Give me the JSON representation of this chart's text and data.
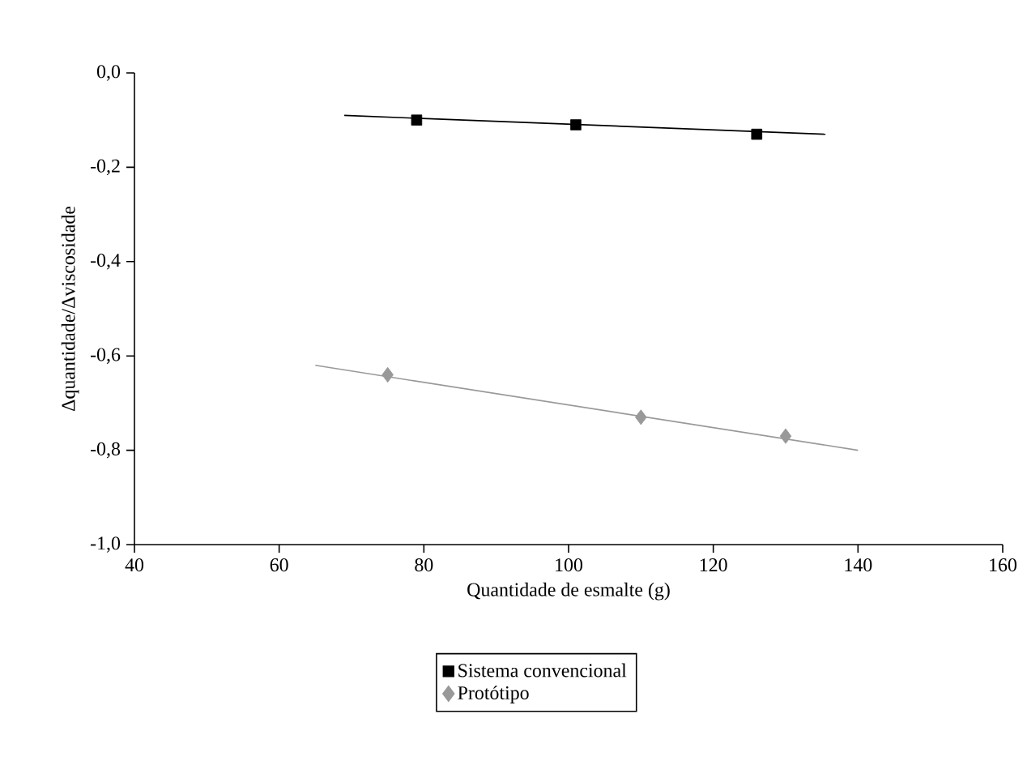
{
  "chart_data": {
    "type": "scatter",
    "xlabel": "Quantidade de esmalte (g)",
    "ylabel": "Δquantidade/Δviscosidade",
    "xlim": [
      40,
      160
    ],
    "xticks": [
      40,
      60,
      80,
      100,
      120,
      140,
      160
    ],
    "ylim": [
      -1.0,
      0.0
    ],
    "yticks": [
      {
        "value": -1.0,
        "label": "-1,0"
      },
      {
        "value": -0.8,
        "label": "-0,8"
      },
      {
        "value": -0.6,
        "label": "-0,6"
      },
      {
        "value": -0.4,
        "label": "-0,4"
      },
      {
        "value": -0.2,
        "label": "-0,2"
      },
      {
        "value": 0.0,
        "label": "0,0"
      }
    ],
    "legend": "bottom",
    "series": [
      {
        "name": "Sistema convencional",
        "marker": "square",
        "color": "#000000",
        "x": [
          79,
          101,
          126
        ],
        "values": [
          -0.1,
          -0.11,
          -0.13
        ]
      },
      {
        "type": "line",
        "marker": "none",
        "line_style": "solid",
        "color": "#000000",
        "x": [
          69,
          135.5
        ],
        "values": [
          -0.09,
          -0.13
        ]
      },
      {
        "name": "Protótipo",
        "marker": "diamond",
        "color": "#999999",
        "x": [
          75,
          110,
          130
        ],
        "values": [
          -0.64,
          -0.73,
          -0.77
        ]
      },
      {
        "type": "line",
        "marker": "none",
        "line_style": "solid",
        "color": "#999999",
        "x": [
          65,
          140
        ],
        "values": [
          -0.62,
          -0.8
        ]
      }
    ]
  }
}
